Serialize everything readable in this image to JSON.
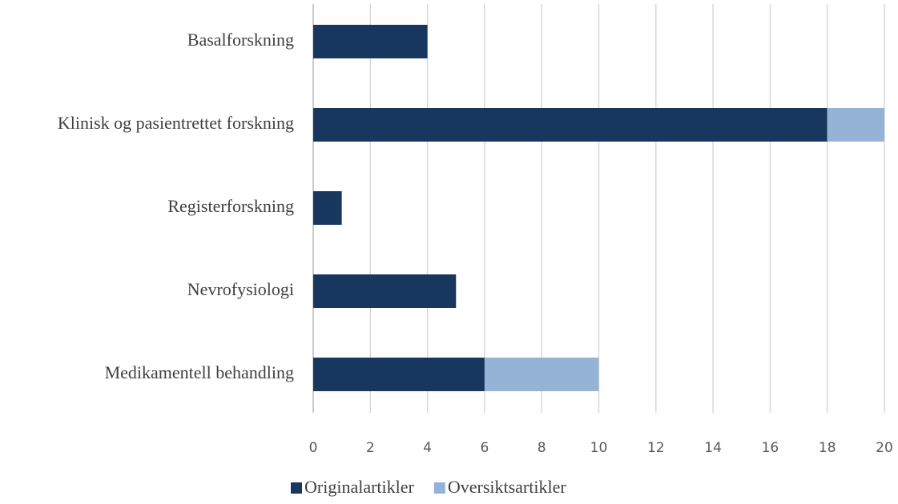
{
  "chart_data": {
    "type": "bar",
    "orientation": "horizontal",
    "stacked": true,
    "categories": [
      "Basalforskning",
      "Klinisk og pasientrettet forskning",
      "Registerforskning",
      "Nevrofysiologi",
      "Medikamentell behandling"
    ],
    "series": [
      {
        "name": "Originalartikler",
        "color": "#17375e",
        "values": [
          4,
          18,
          1,
          5,
          6
        ]
      },
      {
        "name": "Oversiktsartikler",
        "color": "#95b3d7",
        "values": [
          0,
          2,
          0,
          0,
          4
        ]
      }
    ],
    "xlim": [
      0,
      20
    ],
    "xticks": [
      0,
      2,
      4,
      6,
      8,
      10,
      12,
      14,
      16,
      18,
      20
    ],
    "grid": true,
    "legend": "bottom"
  }
}
